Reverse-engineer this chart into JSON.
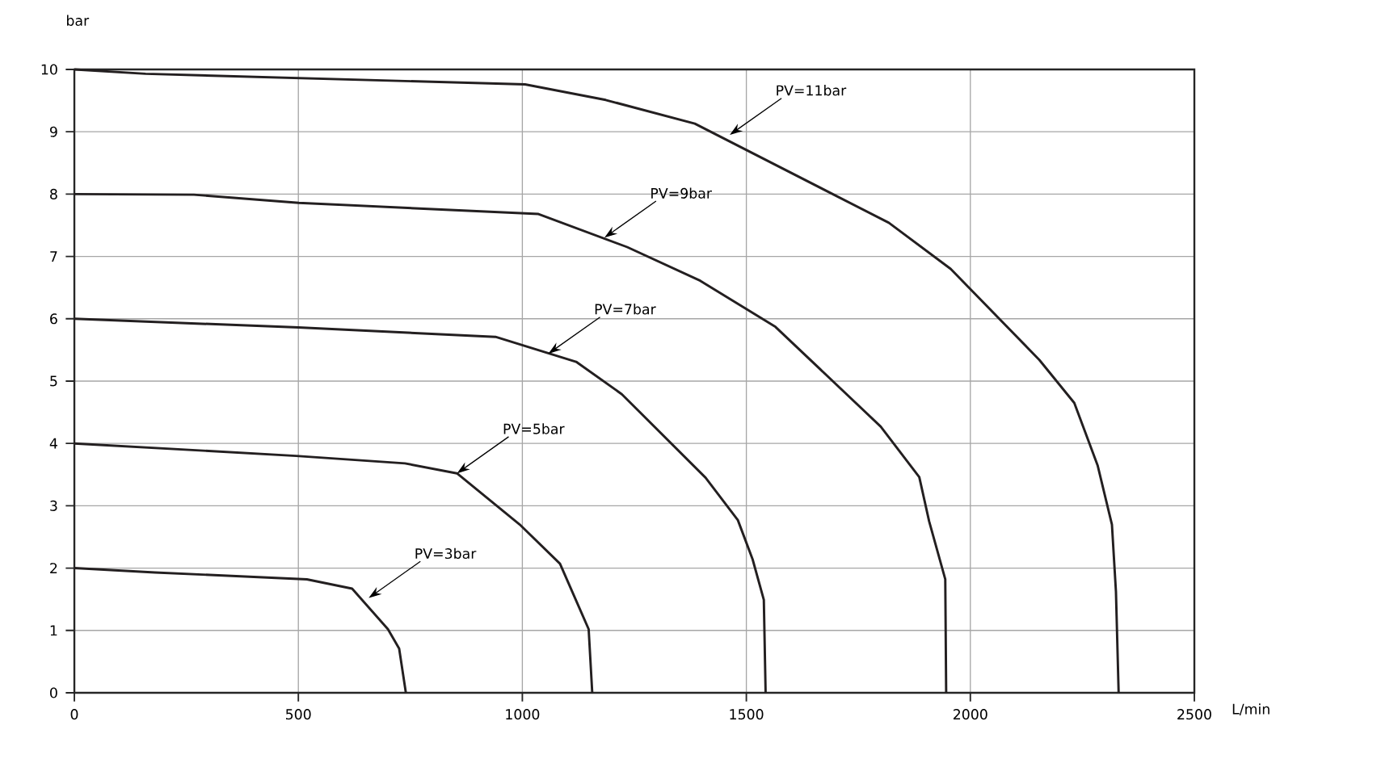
{
  "chart_data": {
    "type": "line",
    "xlabel": "L/min",
    "ylabel": "bar",
    "xlim": [
      0,
      2500
    ],
    "ylim": [
      0,
      10
    ],
    "xticks": [
      0,
      500,
      1000,
      1500,
      2000,
      2500
    ],
    "yticks": [
      0,
      1,
      2,
      3,
      4,
      5,
      6,
      7,
      8,
      9,
      10
    ],
    "grid": true,
    "marker": "none",
    "line_style": "solid",
    "series": [
      {
        "color": "#231f20",
        "x": [
          0,
          180,
          519,
          620,
          700,
          725,
          740
        ],
        "values": [
          2,
          1.93,
          1.82,
          1.67,
          1.02,
          0.71,
          0
        ]
      },
      {
        "color": "#231f20",
        "x": [
          0,
          495,
          738,
          854,
          994,
          1084,
          1148,
          1156
        ],
        "values": [
          4,
          3.8,
          3.68,
          3.52,
          2.7,
          2.07,
          1.02,
          0
        ]
      },
      {
        "color": "#231f20",
        "x": [
          0,
          500,
          940,
          1120,
          1222,
          1409,
          1481,
          1514,
          1539,
          1543
        ],
        "values": [
          6,
          5.86,
          5.71,
          5.31,
          4.79,
          3.45,
          2.77,
          2.14,
          1.49,
          0
        ]
      },
      {
        "color": "#231f20",
        "x": [
          0,
          267,
          501,
          1036,
          1234,
          1397,
          1565,
          1800,
          1886,
          1908,
          1944,
          1946
        ],
        "values": [
          8,
          7.99,
          7.86,
          7.68,
          7.15,
          6.61,
          5.87,
          4.27,
          3.46,
          2.75,
          1.82,
          0
        ]
      },
      {
        "color": "#231f20",
        "x": [
          0,
          159,
          1006,
          1186,
          1385,
          1818,
          1956,
          2154,
          2232,
          2284,
          2316,
          2325,
          2331
        ],
        "values": [
          10,
          9.93,
          9.76,
          9.51,
          9.13,
          7.54,
          6.8,
          5.34,
          4.65,
          3.65,
          2.7,
          1.62,
          0
        ]
      }
    ],
    "annotations": [
      {
        "text": "PV=3bar",
        "x": 657,
        "y": 1.52
      },
      {
        "text": "PV=5bar",
        "x": 854,
        "y": 3.52
      },
      {
        "text": "PV=7bar",
        "x": 1058,
        "y": 5.44
      },
      {
        "text": "PV=9bar",
        "x": 1183,
        "y": 7.3
      },
      {
        "text": "PV=11bar",
        "x": 1463,
        "y": 8.95
      }
    ]
  }
}
